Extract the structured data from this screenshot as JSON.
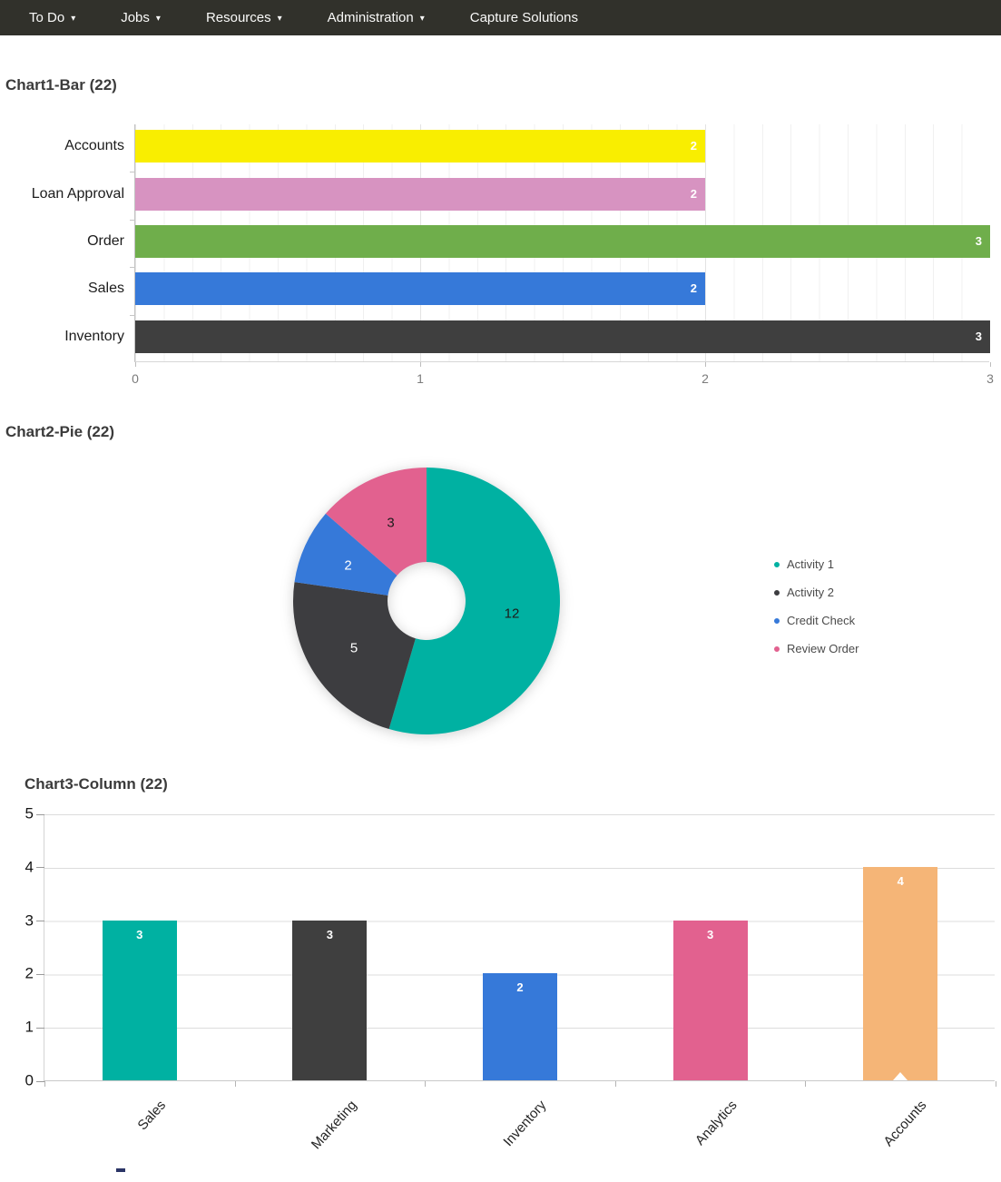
{
  "navbar": {
    "bg": "#31312b",
    "items": [
      {
        "label": "To Do",
        "has_dropdown": true
      },
      {
        "label": "Jobs",
        "has_dropdown": true
      },
      {
        "label": "Resources",
        "has_dropdown": true
      },
      {
        "label": "Administration",
        "has_dropdown": true
      },
      {
        "label": "Capture Solutions",
        "has_dropdown": false
      }
    ]
  },
  "chart_data": [
    {
      "type": "bar",
      "orientation": "horizontal",
      "title": "Chart1-Bar (22)",
      "categories": [
        "Accounts",
        "Loan Approval",
        "Order",
        "Sales",
        "Inventory"
      ],
      "values": [
        2,
        2,
        3,
        2,
        3
      ],
      "colors": [
        "#f9ee00",
        "#d793c1",
        "#6fae4b",
        "#3679d9",
        "#3f3f3f"
      ],
      "value_label_color": "#ffffff",
      "xlabel": "",
      "ylabel": "",
      "xlim": [
        0,
        3
      ],
      "x_ticks": [
        0,
        1,
        2,
        3
      ],
      "grid": true,
      "minor_grid_divisions_per_unit": 10
    },
    {
      "type": "pie",
      "title": "Chart2-Pie (22)",
      "donut": true,
      "start_angle_deg": 0,
      "clockwise": true,
      "legend_position": "right",
      "slices": [
        {
          "label": "Activity 1",
          "value": 12,
          "color": "#00b1a2",
          "label_color": "#1c1c1c"
        },
        {
          "label": "Activity 2",
          "value": 5,
          "color": "#3d3d40",
          "label_color": "#ffffff"
        },
        {
          "label": "Credit Check",
          "value": 2,
          "color": "#3679d9",
          "label_color": "#ffffff"
        },
        {
          "label": "Review Order",
          "value": 3,
          "color": "#e2618f",
          "label_color": "#1c1c1c"
        }
      ]
    },
    {
      "type": "bar",
      "orientation": "vertical",
      "title": "Chart3-Column (22)",
      "categories": [
        "Sales",
        "Marketing",
        "Inventory",
        "Analytics",
        "Accounts"
      ],
      "values": [
        3,
        3,
        2,
        3,
        4
      ],
      "colors": [
        "#00b1a2",
        "#3f3f3f",
        "#3679d9",
        "#e2618f",
        "#f5b577"
      ],
      "value_label_color": "#ffffff",
      "xlabel": "",
      "ylabel": "",
      "ylim": [
        0,
        5
      ],
      "y_ticks": [
        5,
        4,
        3,
        2,
        1,
        0
      ],
      "grid": true,
      "selected_category": "Accounts"
    }
  ]
}
